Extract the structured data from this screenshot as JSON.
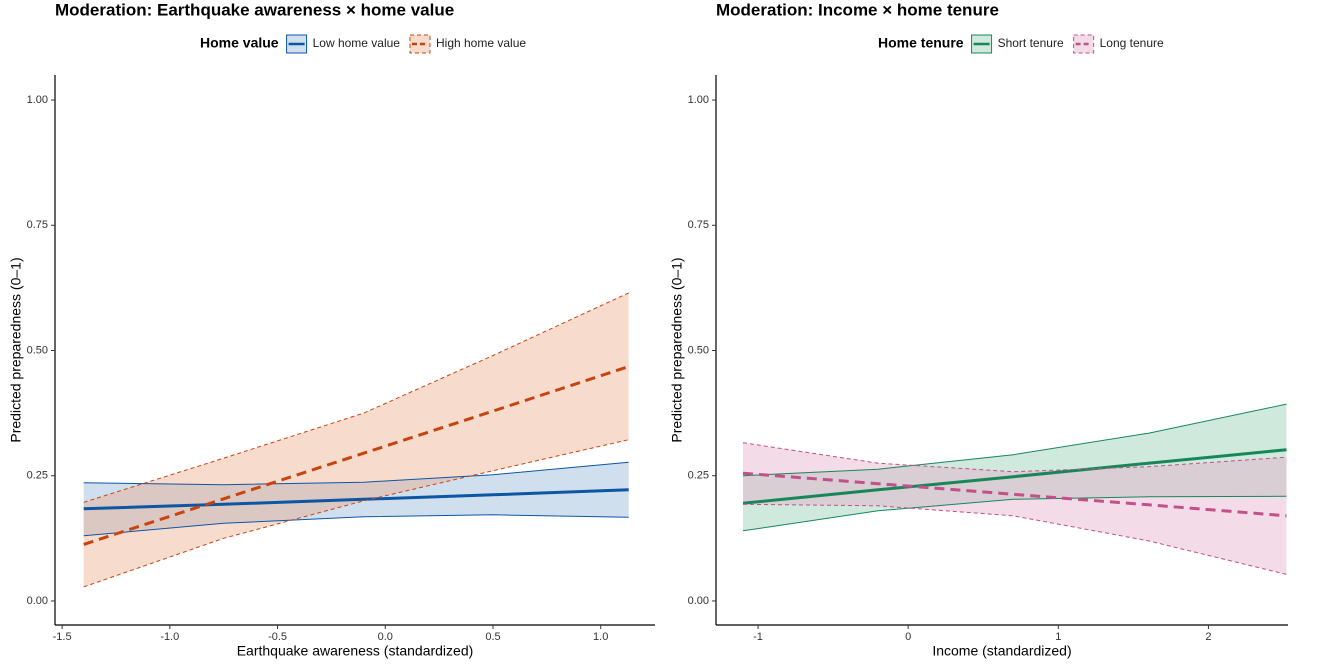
{
  "chart_data": [
    {
      "type": "line",
      "title": "Moderation: Earthquake awareness × home value",
      "xlabel": "Earthquake awareness (standardized)",
      "ylabel": "Predicted preparedness (0–1)",
      "legend_title": "Home value",
      "legend_position": "top",
      "xlim": [
        -1.533,
        1.252
      ],
      "ylim": [
        -0.048,
        1.05
      ],
      "xticks": [
        -1.5,
        {
          "value": -1.0,
          "label": "-1.0"
        },
        -0.5,
        {
          "value": 0.0,
          "label": "0.0"
        },
        0.5,
        {
          "value": 1.0,
          "label": "1.0"
        }
      ],
      "yticks": [
        {
          "value": 0,
          "label": "0.00"
        },
        0.25,
        {
          "value": 0.5,
          "label": "0.50"
        },
        0.75,
        {
          "value": 1,
          "label": "1.00"
        }
      ],
      "x": [
        -1.4,
        -0.75,
        -0.1,
        0.5,
        1.13
      ],
      "series": [
        {
          "name": "Low home value",
          "color": "#0d56a3",
          "fill": "#8fb3d4",
          "linestyle": "solid",
          "values": [
            0.184,
            0.193,
            0.203,
            0.212,
            0.222
          ],
          "lower": [
            0.13,
            0.155,
            0.168,
            0.172,
            0.167
          ],
          "upper": [
            0.236,
            0.232,
            0.237,
            0.252,
            0.277
          ]
        },
        {
          "name": "High home value",
          "color": "#c8440f",
          "fill": "#eda989",
          "linestyle": "dashed",
          "values": [
            0.113,
            0.204,
            0.295,
            0.379,
            0.468
          ],
          "lower": [
            0.028,
            0.125,
            0.2,
            0.26,
            0.322
          ],
          "upper": [
            0.197,
            0.285,
            0.375,
            0.49,
            0.615
          ]
        }
      ]
    },
    {
      "type": "line",
      "title": "Moderation: Income × home tenure",
      "xlabel": "Income (standardized)",
      "ylabel": "Predicted preparedness (0–1)",
      "legend_title": "Home tenure",
      "legend_position": "top",
      "xlim": [
        -1.28,
        2.53
      ],
      "ylim": [
        -0.048,
        1.05
      ],
      "xticks": [
        -1,
        0,
        1,
        2
      ],
      "yticks": [
        {
          "value": 0,
          "label": "0.00"
        },
        0.25,
        {
          "value": 0.5,
          "label": "0.50"
        },
        0.75,
        {
          "value": 1,
          "label": "1.00"
        }
      ],
      "x": [
        -1.1,
        -0.2,
        0.7,
        1.6,
        2.52
      ],
      "series": [
        {
          "name": "Short tenure",
          "color": "#17875a",
          "fill": "#8fcaae",
          "linestyle": "solid",
          "values": [
            0.195,
            0.222,
            0.248,
            0.275,
            0.302
          ],
          "lower": [
            0.14,
            0.18,
            0.203,
            0.208,
            0.209
          ],
          "upper": [
            0.25,
            0.263,
            0.292,
            0.335,
            0.393
          ]
        },
        {
          "name": "Long tenure",
          "color": "#c2508a",
          "fill": "#e3a9c8",
          "linestyle": "dashed",
          "values": [
            0.255,
            0.234,
            0.213,
            0.192,
            0.17
          ],
          "lower": [
            0.193,
            0.19,
            0.17,
            0.12,
            0.053
          ],
          "upper": [
            0.316,
            0.275,
            0.258,
            0.268,
            0.287
          ]
        }
      ]
    }
  ]
}
